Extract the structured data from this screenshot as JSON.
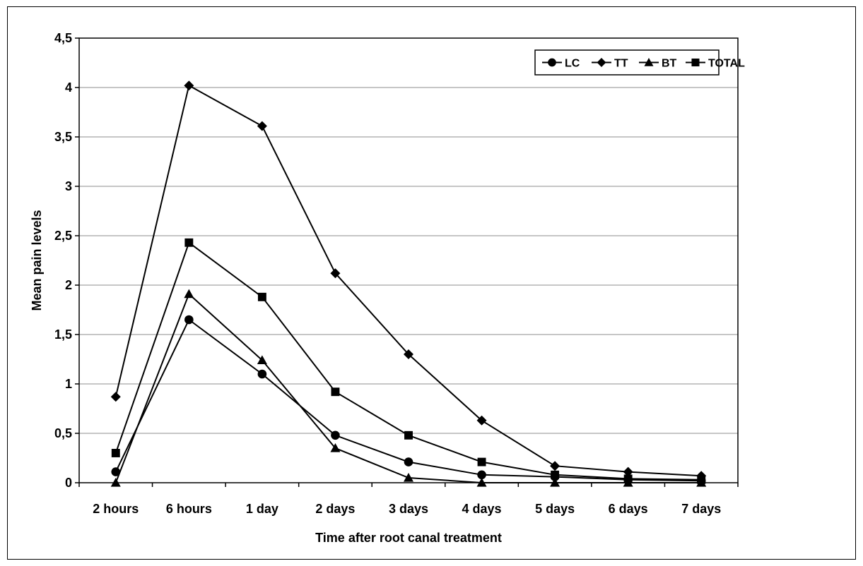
{
  "chart_data": {
    "type": "line",
    "title": "",
    "xlabel": "Time after root canal treatment",
    "ylabel": "Mean pain levels",
    "ylim": [
      0,
      4.5
    ],
    "yticks": [
      "0",
      "0,5",
      "1",
      "1,5",
      "2",
      "2,5",
      "3",
      "3,5",
      "4",
      "4,5"
    ],
    "categories": [
      "2 hours",
      "6 hours",
      "1 day",
      "2 days",
      "3 days",
      "4 days",
      "5 days",
      "6 days",
      "7 days"
    ],
    "grid": true,
    "legend_position": "top-right",
    "series": [
      {
        "name": "LC",
        "marker": "circle",
        "values": [
          0.11,
          1.65,
          1.1,
          0.48,
          0.21,
          0.08,
          0.06,
          0.03,
          0.02
        ]
      },
      {
        "name": "TT",
        "marker": "diamond",
        "values": [
          0.87,
          4.02,
          3.61,
          2.12,
          1.3,
          0.63,
          0.17,
          0.11,
          0.07
        ]
      },
      {
        "name": "BT",
        "marker": "triangle",
        "values": [
          0.0,
          1.91,
          1.24,
          0.35,
          0.05,
          0.0,
          0.0,
          0.0,
          0.0
        ]
      },
      {
        "name": "TOTAL",
        "marker": "square",
        "values": [
          0.3,
          2.43,
          1.88,
          0.92,
          0.48,
          0.21,
          0.08,
          0.04,
          0.03
        ]
      }
    ]
  }
}
